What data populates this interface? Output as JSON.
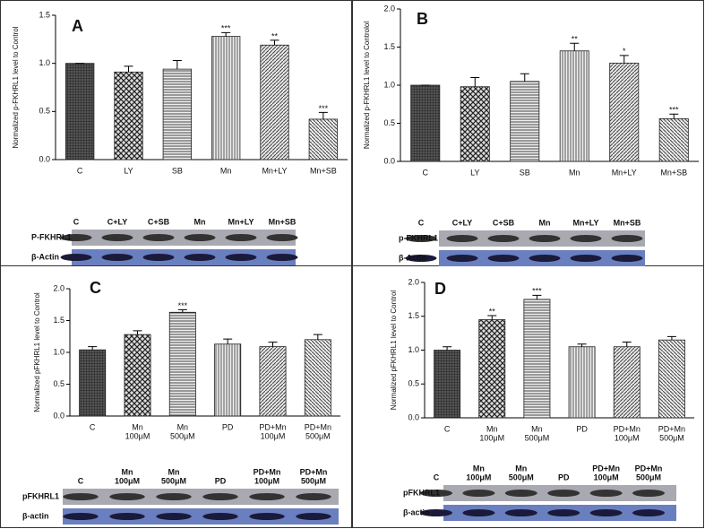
{
  "chart_data": [
    {
      "type": "bar",
      "panel": "A",
      "y_label": "Normalized p-FKHRL1  level to Control",
      "categories": [
        [
          "C"
        ],
        [
          "LY"
        ],
        [
          "SB"
        ],
        [
          "Mn"
        ],
        [
          "Mn+LY"
        ],
        [
          "Mn+SB"
        ]
      ],
      "values": [
        1.0,
        0.91,
        0.94,
        1.28,
        1.19,
        0.42
      ],
      "errors": [
        0,
        0.06,
        0.09,
        0.04,
        0.05,
        0.07
      ],
      "annotations": [
        null,
        null,
        null,
        "***",
        "**",
        "***"
      ],
      "ylim": [
        0,
        1.5
      ],
      "yticks": [
        {
          "value": 0,
          "label": "0.0"
        },
        0.5,
        {
          "value": 1,
          "label": "1.0"
        },
        1.5
      ],
      "blot": {
        "lanes": [
          [
            "C"
          ],
          [
            "C+LY"
          ],
          [
            "C+SB"
          ],
          [
            "Mn"
          ],
          [
            "Mn+LY"
          ],
          [
            "Mn+SB"
          ]
        ],
        "rows": [
          "P-FKHRL1",
          "β-Actin"
        ]
      }
    },
    {
      "type": "bar",
      "panel": "B",
      "y_label": "Normalized p-FKHRL1  level to Controlol",
      "categories": [
        [
          "C"
        ],
        [
          "LY"
        ],
        [
          "SB"
        ],
        [
          "Mn"
        ],
        [
          "Mn+LY"
        ],
        [
          "Mn+SB"
        ]
      ],
      "values": [
        1.0,
        0.98,
        1.05,
        1.45,
        1.29,
        0.56
      ],
      "errors": [
        0,
        0.12,
        0.1,
        0.1,
        0.1,
        0.06
      ],
      "annotations": [
        null,
        null,
        null,
        "**",
        "*",
        "***"
      ],
      "ylim": [
        0,
        2
      ],
      "yticks": [
        {
          "value": 0,
          "label": "0.0"
        },
        0.5,
        {
          "value": 1,
          "label": "1.0"
        },
        1.5,
        {
          "value": 2,
          "label": "2.0"
        }
      ],
      "blot": {
        "lanes": [
          [
            "C"
          ],
          [
            "C+LY"
          ],
          [
            "C+SB"
          ],
          [
            "Mn"
          ],
          [
            "Mn+LY"
          ],
          [
            "Mn+SB"
          ]
        ],
        "rows": [
          "p-FKHRL1",
          "β-Actin"
        ]
      }
    },
    {
      "type": "bar",
      "panel": "C",
      "y_label": "Normalized pFKHRL1 level to Control",
      "categories": [
        [
          "C"
        ],
        [
          "Mn",
          "100μM"
        ],
        [
          "Mn",
          "500μM"
        ],
        [
          "PD"
        ],
        [
          "PD+Mn",
          "100μM"
        ],
        [
          "PD+Mn",
          "500μM"
        ]
      ],
      "values": [
        1.04,
        1.28,
        1.63,
        1.13,
        1.09,
        1.2
      ],
      "errors": [
        0.05,
        0.06,
        0.04,
        0.08,
        0.07,
        0.08
      ],
      "annotations": [
        null,
        null,
        "***",
        null,
        null,
        null
      ],
      "ylim": [
        0,
        2
      ],
      "yticks": [
        {
          "value": 0,
          "label": "0.0"
        },
        0.5,
        {
          "value": 1,
          "label": "1.0"
        },
        1.5,
        {
          "value": 2,
          "label": "2.0"
        }
      ],
      "blot": {
        "lanes": [
          [
            "C"
          ],
          [
            "Mn",
            "100μM"
          ],
          [
            "Mn",
            "500μM"
          ],
          [
            "PD"
          ],
          [
            "PD+Mn",
            "100μM"
          ],
          [
            "PD+Mn",
            "500μM"
          ]
        ],
        "rows": [
          "pFKHRL1",
          "β-actin"
        ]
      }
    },
    {
      "type": "bar",
      "panel": "D",
      "y_label": "Normalized pFKHRL1 level to Control",
      "categories": [
        [
          "C"
        ],
        [
          "Mn",
          "100μM"
        ],
        [
          "Mn",
          "500μM"
        ],
        [
          "PD"
        ],
        [
          "PD+Mn",
          "100μM"
        ],
        [
          "PD+Mn",
          "500μM"
        ]
      ],
      "values": [
        1.0,
        1.45,
        1.75,
        1.05,
        1.05,
        1.15
      ],
      "errors": [
        0.05,
        0.06,
        0.06,
        0.04,
        0.07,
        0.05
      ],
      "annotations": [
        null,
        "**",
        "***",
        null,
        null,
        null
      ],
      "ylim": [
        0,
        2
      ],
      "yticks": [
        {
          "value": 0,
          "label": "0.0"
        },
        0.5,
        {
          "value": 1,
          "label": "1.0"
        },
        1.5,
        {
          "value": 2,
          "label": "2.0"
        }
      ],
      "blot": {
        "lanes": [
          [
            "C"
          ],
          [
            "Mn",
            "100μM"
          ],
          [
            "Mn",
            "500μM"
          ],
          [
            "PD"
          ],
          [
            "PD+Mn",
            "100μM"
          ],
          [
            "PD+Mn",
            "500μM"
          ]
        ],
        "rows": [
          "pFKHRL1",
          "β-actin"
        ]
      }
    }
  ]
}
